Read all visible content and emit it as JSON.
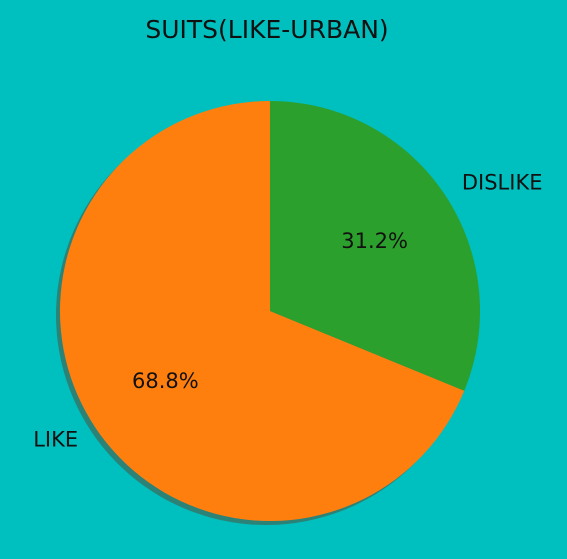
{
  "colors": {
    "background": "#00bfbf",
    "like": "#ff7f0e",
    "dislike": "#2ca02c",
    "shadow": "#3a6f5f"
  },
  "chart_data": {
    "type": "pie",
    "title": "SUITS(LIKE-URBAN)",
    "shadow": true,
    "start_angle_deg": 90,
    "direction": "counterclockwise",
    "slices": [
      {
        "label": "LIKE",
        "value": 68.8,
        "pct_label": "68.8%",
        "color": "#ff7f0e"
      },
      {
        "label": "DISLIKE",
        "value": 31.2,
        "pct_label": "31.2%",
        "color": "#2ca02c"
      }
    ]
  }
}
